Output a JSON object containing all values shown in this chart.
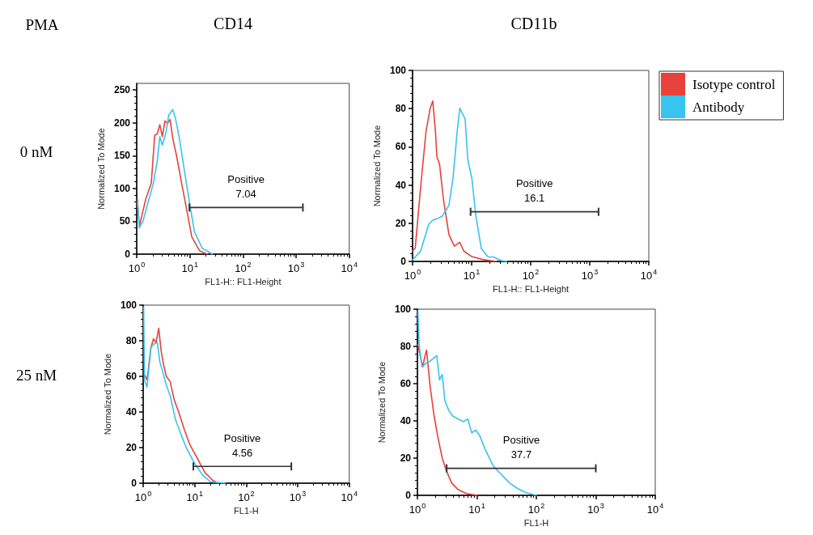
{
  "chart_data": [
    {
      "type": "line",
      "title": "CD14",
      "xlabel": "FL1-H:: FL1-Height",
      "ylabel": "Normalized To Mode",
      "annotations": [
        "PMA",
        "0 nM",
        {
          "text": "Positive\n7.04",
          "x": 114,
          "y": 71
        }
      ],
      "log": "x",
      "xlim": [
        1,
        10000
      ],
      "xticks": [
        {
          "value": 1,
          "label": "10$^{0}$"
        },
        {
          "value": 10,
          "label": "10$^{1}$"
        },
        {
          "value": 100,
          "label": "10$^{2}$"
        },
        {
          "value": 1000,
          "label": "10$^{3}$"
        },
        {
          "value": 10000,
          "label": "10$^{4}$"
        }
      ],
      "ylim": [
        0,
        260
      ],
      "yticks": [
        0,
        50,
        100,
        150,
        200,
        250
      ],
      "series": [
        {
          "color": "#e8413c",
          "x": [
            1.03,
            1.12,
            1.48,
            1.88,
            2.18,
            2.43,
            2.72,
            3.04,
            3.4,
            3.8,
            4.25,
            4.75,
            5.61,
            7.0,
            8.75,
            10.9,
            15.3,
            21.3
          ],
          "values": [
            84,
            42,
            84,
            108,
            181,
            183,
            197,
            179,
            203,
            199,
            205,
            177,
            150,
            108,
            67,
            26,
            5,
            0
          ]
        },
        {
          "color": "#38c3f0",
          "x": [
            1.03,
            1.12,
            1.32,
            1.65,
            2.06,
            2.43,
            2.72,
            3.04,
            3.59,
            4.02,
            4.75,
            5.31,
            6.27,
            7.83,
            9.78,
            12.2,
            17.1,
            26.6
          ],
          "values": [
            80,
            40,
            51,
            80,
            108,
            141,
            179,
            166,
            187,
            212,
            220,
            208,
            179,
            129,
            80,
            34,
            9,
            0
          ]
        },
        {
          "color": "#333333",
          "x": [
            9.8,
            1340
          ],
          "values": [
            71,
            71
          ]
        }
      ]
    },
    {
      "type": "line",
      "title": "CD11b",
      "xlabel": "FL1-H:: FL1-Height",
      "ylabel": "Normalized To Mode",
      "annotations": [
        {
          "text": "Positive\n16.1",
          "x": 116,
          "y": 26
        }
      ],
      "legend": "right",
      "log": "x",
      "xlim": [
        1,
        10000
      ],
      "xticks": [
        {
          "value": 1,
          "label": "10$^{0}$"
        },
        {
          "value": 10,
          "label": "10$^{1}$"
        },
        {
          "value": 100,
          "label": "10$^{2}$"
        },
        {
          "value": 1000,
          "label": "10$^{3}$"
        },
        {
          "value": 10000,
          "label": "10$^{4}$"
        }
      ],
      "ylim": [
        0,
        100
      ],
      "yticks": [
        0,
        20,
        40,
        60,
        80,
        100
      ],
      "series": [
        {
          "name": "Isotype control",
          "color": "#e8413c",
          "x": [
            1,
            1.11,
            1.37,
            1.69,
            1.98,
            2.2,
            2.44,
            2.58,
            2.86,
            3.35,
            4.13,
            5.1,
            6.3,
            7.38,
            10.1,
            15.4,
            26
          ],
          "values": [
            5.4,
            7,
            39,
            68,
            80,
            84,
            68,
            55,
            51,
            32,
            14,
            8,
            10,
            5.4,
            2.5,
            1,
            0
          ]
        },
        {
          "name": "Antibody",
          "color": "#38c3f0",
          "x": [
            1,
            1.37,
            1.88,
            2.2,
            2.58,
            3.18,
            4.13,
            4.84,
            5.67,
            6.3,
            6.99,
            7.76,
            8.61,
            10.1,
            11.8,
            14.6,
            19,
            23.4,
            32,
            39.6
          ],
          "values": [
            0.8,
            5.4,
            19.5,
            21.6,
            22.3,
            23.7,
            29.4,
            43.5,
            67.5,
            80.2,
            77.4,
            74.6,
            53.4,
            43.5,
            23.7,
            6.8,
            2.3,
            2.3,
            0.4,
            0
          ]
        },
        {
          "color": "#333333",
          "x": [
            9.6,
            1410
          ],
          "values": [
            26,
            26
          ]
        }
      ]
    },
    {
      "type": "line",
      "xlabel": "FL1-H",
      "ylabel": "Normalized To Mode",
      "annotations": [
        "25 nM",
        {
          "text": "Positive\n4.56",
          "x": 84,
          "y": 9.4
        }
      ],
      "log": "x",
      "xlim": [
        1,
        10000
      ],
      "xticks": [
        {
          "value": 1,
          "label": "10$^{0}$"
        },
        {
          "value": 10,
          "label": "10$^{1}$"
        },
        {
          "value": 100,
          "label": "10$^{2}$"
        },
        {
          "value": 1000,
          "label": "10$^{3}$"
        },
        {
          "value": 10000,
          "label": "10$^{4}$"
        }
      ],
      "ylim": [
        0,
        100
      ],
      "yticks": [
        0,
        20,
        40,
        60,
        80,
        100
      ],
      "series": [
        {
          "color": "#e8413c",
          "x": [
            1.06,
            1.19,
            1.41,
            1.58,
            1.78,
            2.0,
            2.24,
            2.51,
            2.82,
            3.35,
            3.98,
            5.01,
            6.31,
            7.94,
            11.2,
            15.8,
            22.4,
            28.2
          ],
          "values": [
            61,
            58,
            76,
            81,
            79,
            87,
            74,
            66,
            60,
            57,
            47,
            39,
            30,
            22,
            14,
            6,
            1.6,
            0
          ]
        },
        {
          "color": "#38c3f0",
          "x": [
            1.02,
            1.06,
            1.19,
            1.41,
            1.58,
            1.88,
            2.11,
            2.37,
            2.82,
            3.35,
            4.22,
            5.31,
            7.08,
            10,
            14.1,
            20,
            39.8
          ],
          "values": [
            99,
            58,
            54,
            76,
            78,
            79,
            68,
            63,
            55,
            49,
            36,
            28,
            19,
            11,
            4.7,
            0.8,
            0
          ]
        },
        {
          "color": "#333333",
          "x": [
            9.4,
            750
          ],
          "values": [
            9.4,
            9.4
          ]
        }
      ]
    },
    {
      "type": "line",
      "xlabel": "FL1-H",
      "ylabel": "Normalized To Mode",
      "annotations": [
        {
          "text": "Positive\n37.7",
          "x": 56,
          "y": 14.5
        }
      ],
      "log": "x",
      "xlim": [
        1,
        10000
      ],
      "xticks": [
        {
          "value": 1,
          "label": "10$^{0}$"
        },
        {
          "value": 10,
          "label": "10$^{1}$"
        },
        {
          "value": 100,
          "label": "10$^{2}$"
        },
        {
          "value": 1000,
          "label": "10$^{3}$"
        },
        {
          "value": 10000,
          "label": "10$^{4}$"
        }
      ],
      "ylim": [
        0,
        100
      ],
      "yticks": [
        0,
        20,
        40,
        60,
        80,
        100
      ],
      "series": [
        {
          "color": "#e8413c",
          "x": [
            1.02,
            1.13,
            1.23,
            1.32,
            1.42,
            1.52,
            1.63,
            1.91,
            2.23,
            2.61,
            3.05,
            3.76,
            4.87,
            6.66,
            10.1
          ],
          "values": [
            81,
            74,
            69,
            74,
            78,
            69,
            59,
            42.5,
            30.6,
            20.1,
            13.4,
            6.7,
            3,
            1,
            0
          ]
        },
        {
          "color": "#38c3f0",
          "x": [
            1.02,
            1.07,
            1.19,
            1.4,
            1.63,
            1.91,
            2.12,
            2.35,
            2.61,
            2.89,
            3.38,
            3.96,
            4.87,
            6.0,
            7.02,
            8.2,
            9.6,
            11.2,
            13.8,
            18.9,
            25.8,
            35.3,
            48.2,
            65.9,
            100
          ],
          "values": [
            99,
            81,
            69,
            71,
            72,
            74,
            75,
            62,
            65,
            51,
            45.5,
            42.5,
            41,
            39.6,
            41,
            33.6,
            35,
            32,
            24.6,
            15.7,
            11.2,
            6.7,
            3.7,
            1.5,
            0
          ]
        },
        {
          "color": "#333333",
          "x": [
            3.1,
            1000
          ],
          "values": [
            14.5,
            14.5
          ]
        }
      ]
    }
  ]
}
